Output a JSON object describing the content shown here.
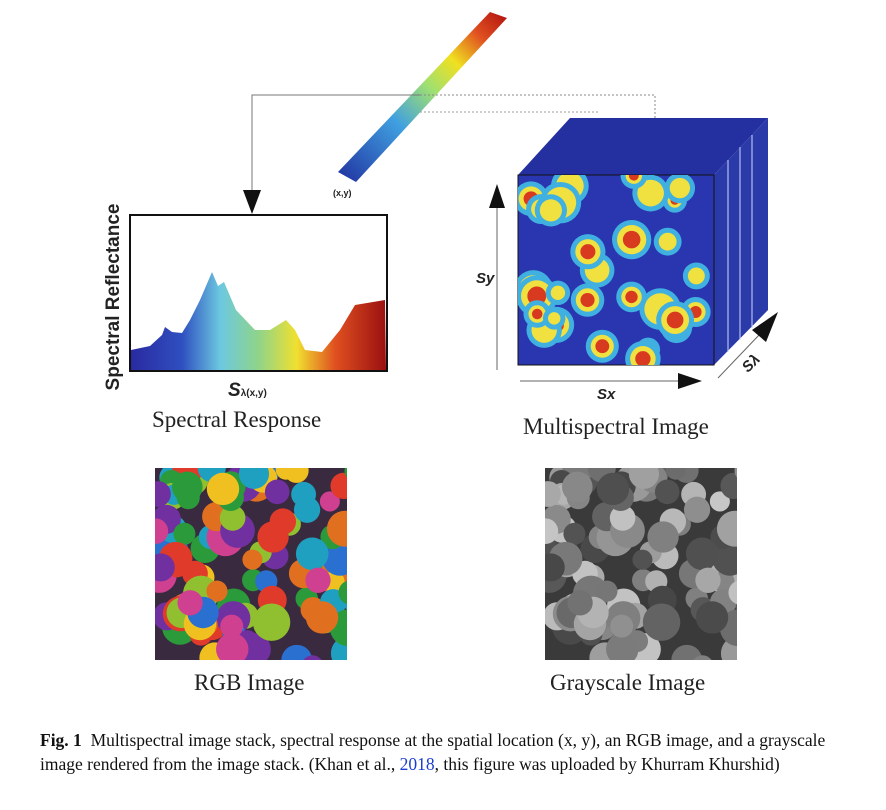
{
  "figure": {
    "point_label": "(x,y)",
    "spectral_chart": {
      "ylabel": "Spectral Reflectance",
      "xlabel_main": "S",
      "xlabel_sub": "λ(x,y)",
      "title": "Spectral Response"
    },
    "cube": {
      "axis_y": "Sy",
      "axis_x": "Sx",
      "axis_lambda": "Sλ",
      "title": "Multispectral Image"
    },
    "rgb_title": "RGB Image",
    "gray_title": "Grayscale Image"
  },
  "caption": {
    "label": "Fig. 1",
    "text_before": "Multispectral image stack, spectral response at the spatial location (x, y), an RGB image, and a grayscale image rendered from the image stack. (Khan et al., ",
    "link": "2018",
    "text_after": ", this figure was uploaded by Khurram Khurshid)"
  }
}
